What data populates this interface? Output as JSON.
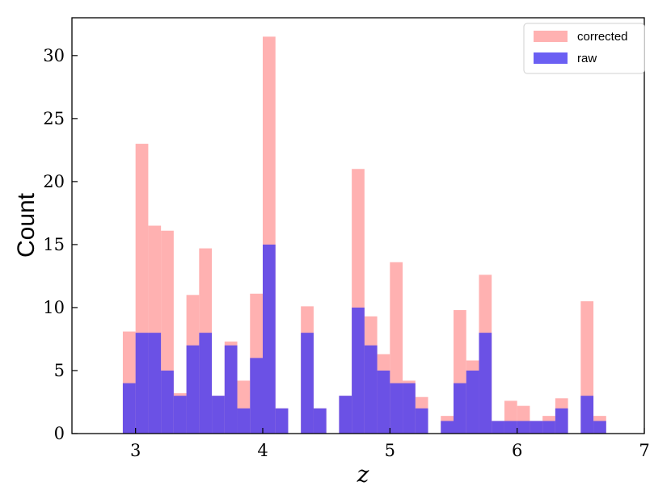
{
  "chart_data": {
    "type": "bar",
    "title": "",
    "xlabel": "z",
    "ylabel": "Count",
    "xlim": [
      2.5,
      7.0
    ],
    "ylim": [
      0,
      33
    ],
    "bin_width": 0.1,
    "xticks": [
      3,
      4,
      5,
      6,
      7
    ],
    "yticks": [
      0,
      5,
      10,
      15,
      20,
      25,
      30
    ],
    "grid": false,
    "legend_position": "top-right",
    "series": [
      {
        "name": "corrected",
        "color": "#ffaaaa",
        "bins": [
          {
            "x": 2.95,
            "y": 8.1
          },
          {
            "x": 3.05,
            "y": 23.0
          },
          {
            "x": 3.15,
            "y": 16.5
          },
          {
            "x": 3.25,
            "y": 16.1
          },
          {
            "x": 3.35,
            "y": 3.2
          },
          {
            "x": 3.45,
            "y": 11.0
          },
          {
            "x": 3.55,
            "y": 14.7
          },
          {
            "x": 3.65,
            "y": 3.0
          },
          {
            "x": 3.75,
            "y": 7.3
          },
          {
            "x": 3.85,
            "y": 4.2
          },
          {
            "x": 3.95,
            "y": 11.1
          },
          {
            "x": 4.05,
            "y": 31.5
          },
          {
            "x": 4.15,
            "y": 2.0
          },
          {
            "x": 4.35,
            "y": 10.1
          },
          {
            "x": 4.45,
            "y": 2.0
          },
          {
            "x": 4.65,
            "y": 3.0
          },
          {
            "x": 4.75,
            "y": 21.0
          },
          {
            "x": 4.85,
            "y": 9.3
          },
          {
            "x": 4.95,
            "y": 6.3
          },
          {
            "x": 5.05,
            "y": 13.6
          },
          {
            "x": 5.15,
            "y": 4.2
          },
          {
            "x": 5.25,
            "y": 2.9
          },
          {
            "x": 5.45,
            "y": 1.4
          },
          {
            "x": 5.55,
            "y": 9.8
          },
          {
            "x": 5.65,
            "y": 5.8
          },
          {
            "x": 5.75,
            "y": 12.6
          },
          {
            "x": 5.85,
            "y": 1.0
          },
          {
            "x": 5.95,
            "y": 2.6
          },
          {
            "x": 6.05,
            "y": 2.2
          },
          {
            "x": 6.15,
            "y": 1.0
          },
          {
            "x": 6.25,
            "y": 1.4
          },
          {
            "x": 6.35,
            "y": 2.8
          },
          {
            "x": 6.55,
            "y": 10.5
          },
          {
            "x": 6.65,
            "y": 1.4
          }
        ]
      },
      {
        "name": "raw",
        "color": "#4b3cf0",
        "bins": [
          {
            "x": 2.95,
            "y": 4
          },
          {
            "x": 3.05,
            "y": 8
          },
          {
            "x": 3.15,
            "y": 8
          },
          {
            "x": 3.25,
            "y": 5
          },
          {
            "x": 3.35,
            "y": 3
          },
          {
            "x": 3.45,
            "y": 7
          },
          {
            "x": 3.55,
            "y": 8
          },
          {
            "x": 3.65,
            "y": 3
          },
          {
            "x": 3.75,
            "y": 7
          },
          {
            "x": 3.85,
            "y": 2
          },
          {
            "x": 3.95,
            "y": 6
          },
          {
            "x": 4.05,
            "y": 15
          },
          {
            "x": 4.15,
            "y": 2
          },
          {
            "x": 4.35,
            "y": 8
          },
          {
            "x": 4.45,
            "y": 2
          },
          {
            "x": 4.65,
            "y": 3
          },
          {
            "x": 4.75,
            "y": 10
          },
          {
            "x": 4.85,
            "y": 7
          },
          {
            "x": 4.95,
            "y": 5
          },
          {
            "x": 5.05,
            "y": 4
          },
          {
            "x": 5.15,
            "y": 4
          },
          {
            "x": 5.25,
            "y": 2
          },
          {
            "x": 5.45,
            "y": 1
          },
          {
            "x": 5.55,
            "y": 4
          },
          {
            "x": 5.65,
            "y": 5
          },
          {
            "x": 5.75,
            "y": 8
          },
          {
            "x": 5.85,
            "y": 1
          },
          {
            "x": 5.95,
            "y": 1
          },
          {
            "x": 6.05,
            "y": 1
          },
          {
            "x": 6.15,
            "y": 1
          },
          {
            "x": 6.25,
            "y": 1
          },
          {
            "x": 6.35,
            "y": 2
          },
          {
            "x": 6.55,
            "y": 3
          },
          {
            "x": 6.65,
            "y": 1
          }
        ]
      }
    ]
  }
}
